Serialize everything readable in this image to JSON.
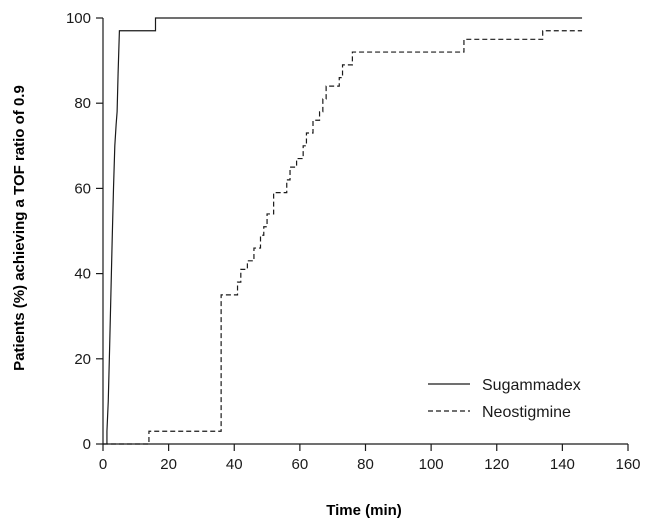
{
  "chart_data": {
    "type": "line",
    "step": true,
    "xlabel": "Time (min)",
    "ylabel": "Patients (%) achieving a TOF ratio of 0.9",
    "xlim": [
      0,
      160
    ],
    "ylim": [
      0,
      100
    ],
    "xticks": [
      0,
      20,
      40,
      60,
      80,
      100,
      120,
      140,
      160
    ],
    "yticks": [
      0,
      20,
      40,
      60,
      80,
      100
    ],
    "grid": false,
    "legend_position": "bottom-right",
    "series": [
      {
        "name": "Sugammadex",
        "line_style": "solid",
        "color": "#1a1a1a",
        "points": [
          [
            1.2,
            0
          ],
          [
            1.2,
            3
          ],
          [
            1.6,
            10
          ],
          [
            2.0,
            22
          ],
          [
            2.4,
            35
          ],
          [
            2.8,
            48
          ],
          [
            3.2,
            60
          ],
          [
            3.6,
            70
          ],
          [
            4.0,
            75
          ],
          [
            4.3,
            78
          ],
          [
            4.6,
            87
          ],
          [
            5.0,
            97
          ],
          [
            16,
            97
          ],
          [
            16,
            100
          ],
          [
            146,
            100
          ]
        ]
      },
      {
        "name": "Neostigmine",
        "line_style": "dashed",
        "color": "#1a1a1a",
        "points": [
          [
            0,
            0
          ],
          [
            14,
            0
          ],
          [
            14,
            3
          ],
          [
            36,
            3
          ],
          [
            36,
            35
          ],
          [
            41,
            35
          ],
          [
            41,
            38
          ],
          [
            42,
            38
          ],
          [
            42,
            41
          ],
          [
            44,
            41
          ],
          [
            44,
            43
          ],
          [
            46,
            43
          ],
          [
            46,
            46
          ],
          [
            48,
            46
          ],
          [
            48,
            49
          ],
          [
            49,
            49
          ],
          [
            49,
            51
          ],
          [
            50,
            51
          ],
          [
            50,
            54
          ],
          [
            52,
            54
          ],
          [
            52,
            59
          ],
          [
            56,
            59
          ],
          [
            56,
            62
          ],
          [
            57,
            62
          ],
          [
            57,
            65
          ],
          [
            59,
            65
          ],
          [
            59,
            67
          ],
          [
            61,
            67
          ],
          [
            61,
            70
          ],
          [
            62,
            70
          ],
          [
            62,
            73
          ],
          [
            64,
            73
          ],
          [
            64,
            76
          ],
          [
            66,
            76
          ],
          [
            66,
            78
          ],
          [
            67,
            78
          ],
          [
            67,
            81
          ],
          [
            68,
            81
          ],
          [
            68,
            84
          ],
          [
            72,
            84
          ],
          [
            72,
            86
          ],
          [
            73,
            86
          ],
          [
            73,
            89
          ],
          [
            76,
            89
          ],
          [
            76,
            92
          ],
          [
            110,
            92
          ],
          [
            110,
            95
          ],
          [
            134,
            95
          ],
          [
            134,
            97
          ],
          [
            146,
            97
          ]
        ]
      }
    ]
  }
}
